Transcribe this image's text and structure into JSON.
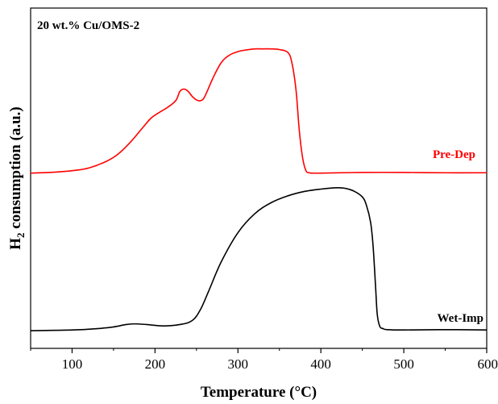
{
  "chart_data": {
    "type": "line",
    "title": "",
    "annotation": "20 wt.% Cu/OMS-2",
    "xlabel": "Temperature (°C)",
    "ylabel_main": "H",
    "ylabel_sub": "2",
    "ylabel_rest": " consumption (a.u.)",
    "xlim": [
      50,
      600
    ],
    "ylim": [
      0,
      1
    ],
    "xticks": [
      100,
      200,
      300,
      400,
      500,
      600
    ],
    "grid": false,
    "yticks_labeled": false,
    "series": [
      {
        "name": "Pre-Dep",
        "color": "#ff0000",
        "x": [
          50,
          80,
          100,
          120,
          140,
          155,
          170,
          185,
          195,
          205,
          215,
          225,
          230,
          235,
          240,
          245,
          250,
          255,
          260,
          270,
          280,
          290,
          300,
          310,
          320,
          330,
          340,
          350,
          360,
          365,
          370,
          374,
          378,
          382,
          386,
          390,
          400,
          450,
          500,
          550,
          600
        ],
        "y": [
          0.515,
          0.518,
          0.522,
          0.53,
          0.548,
          0.57,
          0.605,
          0.648,
          0.676,
          0.693,
          0.708,
          0.728,
          0.755,
          0.762,
          0.755,
          0.74,
          0.73,
          0.728,
          0.74,
          0.795,
          0.84,
          0.862,
          0.872,
          0.877,
          0.88,
          0.88,
          0.88,
          0.878,
          0.87,
          0.84,
          0.76,
          0.64,
          0.56,
          0.522,
          0.516,
          0.515,
          0.515,
          0.517,
          0.517,
          0.516,
          0.516
        ]
      },
      {
        "name": "Wet-Imp",
        "color": "#000000",
        "x": [
          50,
          100,
          130,
          150,
          165,
          175,
          190,
          210,
          230,
          245,
          255,
          265,
          280,
          300,
          320,
          340,
          360,
          380,
          400,
          420,
          430,
          440,
          450,
          455,
          460,
          463,
          466,
          468,
          471,
          475,
          480,
          500,
          550,
          600
        ],
        "y": [
          0.052,
          0.054,
          0.058,
          0.063,
          0.07,
          0.072,
          0.07,
          0.066,
          0.07,
          0.082,
          0.115,
          0.17,
          0.255,
          0.34,
          0.395,
          0.428,
          0.448,
          0.461,
          0.468,
          0.472,
          0.47,
          0.462,
          0.445,
          0.42,
          0.37,
          0.3,
          0.18,
          0.1,
          0.065,
          0.058,
          0.055,
          0.054,
          0.055,
          0.054
        ]
      }
    ]
  }
}
